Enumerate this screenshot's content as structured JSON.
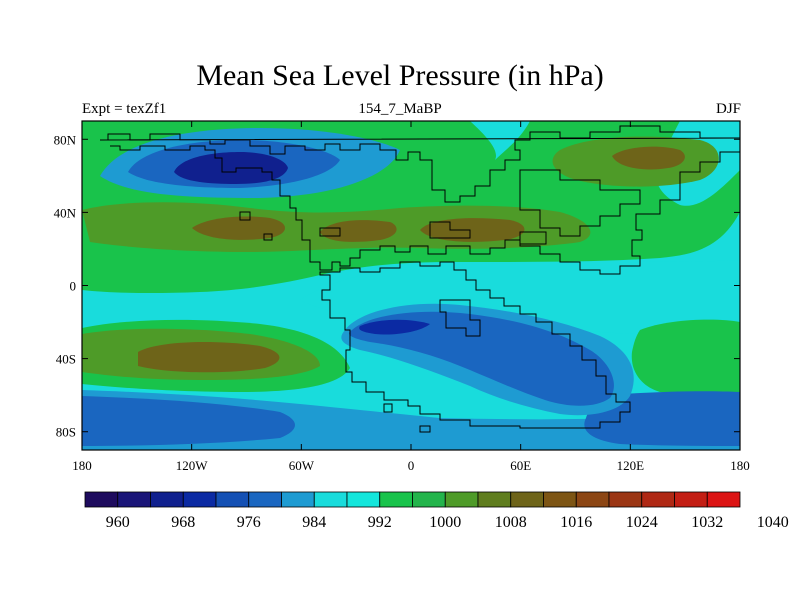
{
  "title": "Mean Sea Level Pressure (in hPa)",
  "subtitle_left": "Expt = texZf1",
  "subtitle_center": "154_7_MaBP",
  "subtitle_right": "DJF",
  "map": {
    "lon_range": [
      -180,
      180
    ],
    "lat_range": [
      -90,
      90
    ],
    "lon_ticks": [
      {
        "value": -180,
        "label": "180"
      },
      {
        "value": -120,
        "label": "120W"
      },
      {
        "value": -60,
        "label": "60W"
      },
      {
        "value": 0,
        "label": "0"
      },
      {
        "value": 60,
        "label": "60E"
      },
      {
        "value": 120,
        "label": "120E"
      },
      {
        "value": 180,
        "label": "180"
      }
    ],
    "lat_ticks": [
      {
        "value": 80,
        "label": "80N"
      },
      {
        "value": 40,
        "label": "40N"
      },
      {
        "value": 0,
        "label": "0"
      },
      {
        "value": -40,
        "label": "40S"
      },
      {
        "value": -80,
        "label": "80S"
      }
    ]
  },
  "colorbar": {
    "colors": [
      "#1e0b5e",
      "#1a1578",
      "#10208e",
      "#0b2aa3",
      "#1450b4",
      "#1a66c0",
      "#1e9bd2",
      "#19dcdc",
      "#14e6dc",
      "#19c34b",
      "#23b44b",
      "#4e9b28",
      "#5f7d1e",
      "#6e6419",
      "#7d5514",
      "#8c4614",
      "#9b3614",
      "#af2814",
      "#c31e14",
      "#dc1414"
    ],
    "labels": [
      "960",
      "968",
      "976",
      "984",
      "992",
      "1000",
      "1008",
      "1016",
      "1024",
      "1032",
      "1040"
    ]
  },
  "colors": {
    "ocean_mid": "#19dcdc",
    "blue_light": "#1e9bd2",
    "blue_mid": "#1a66c0",
    "blue_dark": "#0b2aa3",
    "blue_darkest": "#10208e",
    "green_light": "#19c34b",
    "green_mid": "#4e9b28",
    "olive": "#6e6419"
  }
}
